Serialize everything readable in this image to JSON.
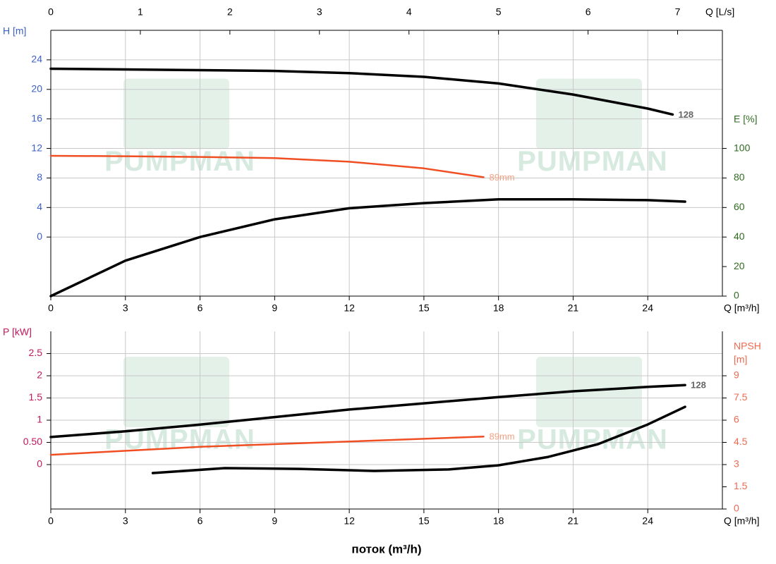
{
  "chart_data": [
    {
      "type": "line",
      "x_label": "Q [m³/h]",
      "x2_label": "Q [L/s]",
      "y_label": "H [m]",
      "y2_label": [
        "E [%]"
      ],
      "xlim": [
        0,
        27
      ],
      "xticks": [
        0,
        3,
        6,
        9,
        12,
        15,
        18,
        21,
        24
      ],
      "x2lim": [
        0,
        7.5
      ],
      "x2ticks": [
        0,
        1,
        2,
        3,
        4,
        5,
        6,
        7
      ],
      "ylim": [
        -8,
        28
      ],
      "yticks": [
        0,
        4,
        8,
        12,
        16,
        20,
        24
      ],
      "y2lim": [
        0,
        180
      ],
      "y2ticks": [
        0,
        20,
        40,
        60,
        80,
        100
      ],
      "y_color": "#3b5fc8",
      "y2_color": "#2e6b1f",
      "grid": true,
      "watermark": "PUMPMAN",
      "series": [
        {
          "name": "128",
          "color": "#000000",
          "label_color": "#666666",
          "axis": "y",
          "x": [
            0,
            3,
            6,
            9,
            12,
            15,
            18,
            21,
            24,
            25
          ],
          "values": [
            22.8,
            22.7,
            22.6,
            22.5,
            22.2,
            21.7,
            20.8,
            19.3,
            17.4,
            16.6
          ]
        },
        {
          "name": "89mm",
          "color": "#f04e23",
          "label_color": "#f4a080",
          "axis": "y",
          "x": [
            0,
            3,
            6,
            9,
            12,
            15,
            17.4
          ],
          "values": [
            11.0,
            10.95,
            10.85,
            10.7,
            10.2,
            9.3,
            8.1
          ]
        },
        {
          "color": "#000000",
          "axis": "y2",
          "x": [
            0,
            3,
            6,
            9,
            12,
            15,
            18,
            21,
            24,
            25.5
          ],
          "values": [
            0,
            24,
            40,
            52,
            59.5,
            63,
            65.5,
            65.5,
            65,
            64
          ]
        }
      ]
    },
    {
      "type": "line",
      "x_label": "Q [m³/h]",
      "y_label": "P [kW]",
      "y2_label": [
        "NPSH",
        "[m]"
      ],
      "title": "поток (m³/h)",
      "xlim": [
        0,
        27
      ],
      "xticks": [
        0,
        3,
        6,
        9,
        12,
        15,
        18,
        21,
        24
      ],
      "ylim": [
        -1,
        3
      ],
      "yticks": [
        0,
        {
          "value": 0.5,
          "label": "0.50"
        },
        1,
        1.5,
        2,
        2.5
      ],
      "y2lim": [
        0,
        12
      ],
      "y2ticks": [
        0,
        1.5,
        3,
        4.5,
        6,
        7.5,
        9
      ],
      "y_color": "#c2185b",
      "y2_color": "#f06a50",
      "grid": true,
      "watermark": "PUMPMAN",
      "series": [
        {
          "name": "128",
          "color": "#000000",
          "label_color": "#666666",
          "axis": "y",
          "x": [
            0,
            3,
            6,
            9,
            12,
            15,
            18,
            21,
            24,
            25.5
          ],
          "values": [
            0.62,
            0.75,
            0.9,
            1.07,
            1.24,
            1.38,
            1.52,
            1.65,
            1.75,
            1.79
          ]
        },
        {
          "name": "89mm",
          "color": "#f04e23",
          "label_color": "#f4a080",
          "axis": "y",
          "x": [
            0,
            6,
            12,
            17.4
          ],
          "values": [
            0.22,
            0.4,
            0.52,
            0.63
          ]
        },
        {
          "color": "#000000",
          "axis": "y2",
          "x": [
            4.1,
            7,
            10,
            13,
            16,
            18,
            20,
            22,
            24,
            25.5
          ],
          "values": [
            2.43,
            2.76,
            2.71,
            2.57,
            2.67,
            2.95,
            3.52,
            4.38,
            5.71,
            6.9
          ]
        }
      ]
    }
  ]
}
